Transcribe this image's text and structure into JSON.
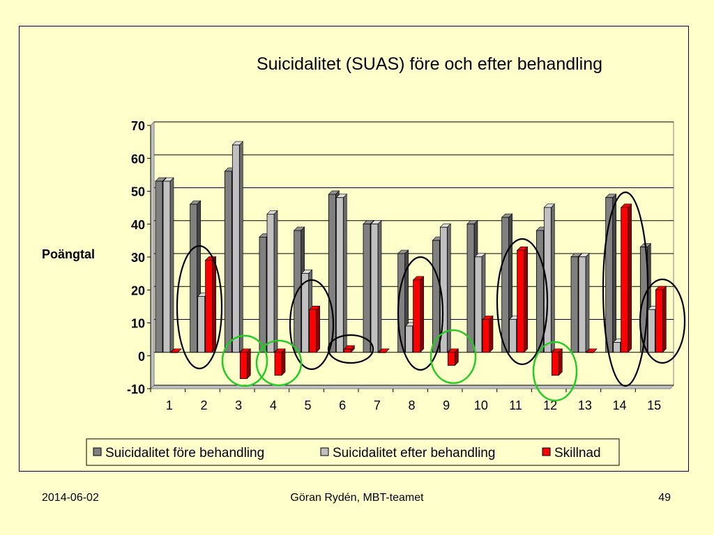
{
  "footer": {
    "date": "2014-06-02",
    "author": "Göran Rydén, MBT-teamet",
    "page": "49"
  },
  "chart_data": {
    "type": "bar",
    "title": "Suicidalitet (SUAS) före och efter behandling",
    "xlabel": "",
    "ylabel": "Poängtal",
    "ylim": [
      -10,
      70
    ],
    "yticks": [
      70,
      60,
      50,
      40,
      30,
      20,
      10,
      0,
      -10
    ],
    "grid": true,
    "legend_position": "bottom",
    "categories": [
      "1",
      "2",
      "3",
      "4",
      "5",
      "6",
      "7",
      "8",
      "9",
      "10",
      "11",
      "12",
      "13",
      "14",
      "15"
    ],
    "series": [
      {
        "name": "Suicidalitet före behandling",
        "color": "#808080",
        "values": [
          52,
          45,
          55,
          35,
          37,
          48,
          39,
          30,
          34,
          39,
          41,
          37,
          29,
          47,
          32
        ]
      },
      {
        "name": "Suicidalitet efter behandling",
        "color": "#c0c0c0",
        "values": [
          52,
          17,
          63,
          42,
          24,
          47,
          39,
          8,
          38,
          29,
          10,
          44,
          29,
          3,
          13
        ]
      },
      {
        "name": "Skillnad",
        "color": "#ff0000",
        "values": [
          0,
          28,
          -8,
          -7,
          13,
          1,
          0,
          22,
          -4,
          10,
          31,
          -7,
          0,
          44,
          19
        ]
      }
    ],
    "annotations": {
      "black_circles_categories": [
        "2",
        "5",
        "6",
        "8",
        "11",
        "14",
        "15"
      ],
      "green_circles_categories": [
        "3",
        "4",
        "9",
        "12"
      ]
    }
  }
}
